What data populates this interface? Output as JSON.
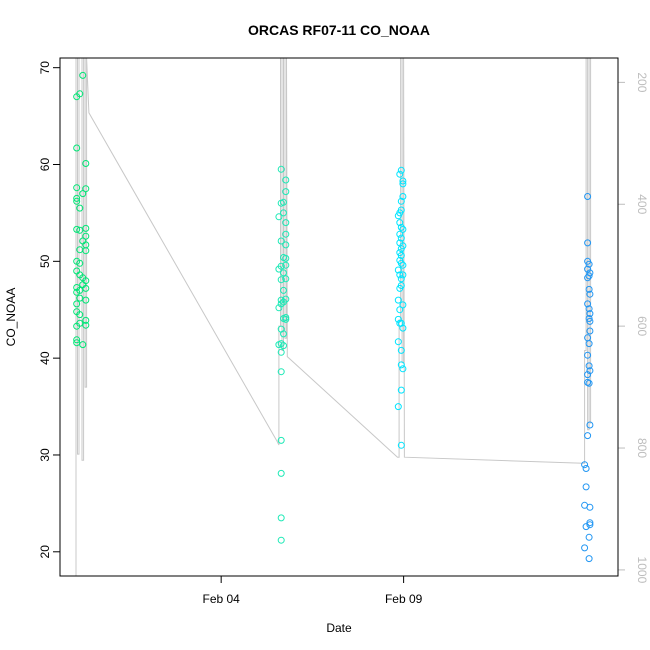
{
  "chart_data": {
    "type": "scatter",
    "title": "ORCAS RF07-11 CO_NOAA",
    "xlabel": "Date",
    "ylabel": "CO_NOAA",
    "x_axis": {
      "type": "date",
      "range": [
        "2016-01-30T14:00",
        "2016-02-14T21:00"
      ],
      "ticks": [
        {
          "value": "2016-02-04",
          "label": "Feb 04"
        },
        {
          "value": "2016-02-09",
          "label": "Feb 09"
        }
      ]
    },
    "y_axis": {
      "range": [
        17.5,
        71
      ],
      "ticks": [
        20,
        30,
        40,
        50,
        60,
        70
      ]
    },
    "y2_axis": {
      "label": "",
      "range": [
        1010,
        160
      ],
      "ticks": [
        200,
        400,
        600,
        800,
        1000
      ],
      "color": "#bdbdbd"
    },
    "grid": false,
    "series": [
      {
        "color": "#00e676",
        "points": [
          [
            "2016-01-31T01:00",
            67.0
          ],
          [
            "2016-01-31T01:00",
            61.7
          ],
          [
            "2016-01-31T01:00",
            57.6
          ],
          [
            "2016-01-31T01:00",
            56.5
          ],
          [
            "2016-01-31T01:00",
            56.2
          ],
          [
            "2016-01-31T01:00",
            53.3
          ],
          [
            "2016-01-31T01:00",
            50.0
          ],
          [
            "2016-01-31T01:00",
            49.0
          ],
          [
            "2016-01-31T01:00",
            47.3
          ],
          [
            "2016-01-31T01:00",
            46.8
          ],
          [
            "2016-01-31T01:00",
            45.6
          ],
          [
            "2016-01-31T01:00",
            44.8
          ],
          [
            "2016-01-31T01:00",
            43.3
          ],
          [
            "2016-01-31T01:00",
            41.9
          ],
          [
            "2016-01-31T01:00",
            41.6
          ],
          [
            "2016-01-31T03:00",
            67.3
          ],
          [
            "2016-01-31T03:00",
            55.5
          ],
          [
            "2016-01-31T03:00",
            53.2
          ],
          [
            "2016-01-31T03:00",
            51.2
          ],
          [
            "2016-01-31T03:00",
            49.8
          ],
          [
            "2016-01-31T03:00",
            48.6
          ],
          [
            "2016-01-31T03:00",
            47.0
          ],
          [
            "2016-01-31T03:00",
            46.2
          ],
          [
            "2016-01-31T03:00",
            44.5
          ],
          [
            "2016-01-31T03:00",
            43.6
          ],
          [
            "2016-01-31T05:00",
            69.2
          ],
          [
            "2016-01-31T05:00",
            57.0
          ],
          [
            "2016-01-31T05:00",
            52.1
          ],
          [
            "2016-01-31T05:00",
            48.3
          ],
          [
            "2016-01-31T05:00",
            47.6
          ],
          [
            "2016-01-31T05:00",
            41.4
          ],
          [
            "2016-01-31T07:00",
            60.1
          ],
          [
            "2016-01-31T07:00",
            57.5
          ],
          [
            "2016-01-31T07:00",
            53.4
          ],
          [
            "2016-01-31T07:00",
            52.6
          ],
          [
            "2016-01-31T07:00",
            51.7
          ],
          [
            "2016-01-31T07:00",
            51.1
          ],
          [
            "2016-01-31T07:00",
            48.0
          ],
          [
            "2016-01-31T07:00",
            47.2
          ],
          [
            "2016-01-31T07:00",
            46.0
          ],
          [
            "2016-01-31T07:00",
            43.9
          ],
          [
            "2016-01-31T07:00",
            43.4
          ]
        ]
      },
      {
        "color": "#1de9b6",
        "points": [
          [
            "2016-02-05T14:00",
            54.6
          ],
          [
            "2016-02-05T14:00",
            49.2
          ],
          [
            "2016-02-05T14:00",
            45.2
          ],
          [
            "2016-02-05T14:00",
            41.4
          ],
          [
            "2016-02-05T15:30",
            59.5
          ],
          [
            "2016-02-05T15:30",
            56.0
          ],
          [
            "2016-02-05T15:30",
            52.1
          ],
          [
            "2016-02-05T15:30",
            49.5
          ],
          [
            "2016-02-05T15:30",
            48.1
          ],
          [
            "2016-02-05T15:30",
            46.0
          ],
          [
            "2016-02-05T15:30",
            45.6
          ],
          [
            "2016-02-05T15:30",
            43.0
          ],
          [
            "2016-02-05T15:30",
            41.5
          ],
          [
            "2016-02-05T15:30",
            40.6
          ],
          [
            "2016-02-05T15:30",
            38.6
          ],
          [
            "2016-02-05T15:30",
            31.5
          ],
          [
            "2016-02-05T15:30",
            28.1
          ],
          [
            "2016-02-05T15:30",
            23.5
          ],
          [
            "2016-02-05T15:30",
            21.2
          ],
          [
            "2016-02-05T17:00",
            56.1
          ],
          [
            "2016-02-05T17:00",
            55.0
          ],
          [
            "2016-02-05T17:00",
            50.4
          ],
          [
            "2016-02-05T17:00",
            48.8
          ],
          [
            "2016-02-05T17:00",
            47.0
          ],
          [
            "2016-02-05T17:00",
            45.8
          ],
          [
            "2016-02-05T17:00",
            44.1
          ],
          [
            "2016-02-05T17:00",
            42.5
          ],
          [
            "2016-02-05T17:00",
            41.3
          ],
          [
            "2016-02-05T18:30",
            58.4
          ],
          [
            "2016-02-05T18:30",
            57.2
          ],
          [
            "2016-02-05T18:30",
            54.0
          ],
          [
            "2016-02-05T18:30",
            52.8
          ],
          [
            "2016-02-05T18:30",
            51.7
          ],
          [
            "2016-02-05T18:30",
            50.3
          ],
          [
            "2016-02-05T18:30",
            49.6
          ],
          [
            "2016-02-05T18:30",
            48.2
          ],
          [
            "2016-02-05T18:30",
            46.1
          ],
          [
            "2016-02-05T18:30",
            44.2
          ],
          [
            "2016-02-05T18:30",
            44.0
          ]
        ]
      },
      {
        "color": "#00e5ff",
        "points": [
          [
            "2016-02-08T20:30",
            54.7
          ],
          [
            "2016-02-08T20:30",
            49.1
          ],
          [
            "2016-02-08T20:30",
            46.0
          ],
          [
            "2016-02-08T20:30",
            44.0
          ],
          [
            "2016-02-08T20:30",
            41.7
          ],
          [
            "2016-02-08T20:30",
            35.0
          ],
          [
            "2016-02-08T21:30",
            59.0
          ],
          [
            "2016-02-08T21:30",
            55.0
          ],
          [
            "2016-02-08T21:30",
            54.0
          ],
          [
            "2016-02-08T21:30",
            52.8
          ],
          [
            "2016-02-08T21:30",
            51.9
          ],
          [
            "2016-02-08T21:30",
            50.9
          ],
          [
            "2016-02-08T21:30",
            50.1
          ],
          [
            "2016-02-08T21:30",
            48.6
          ],
          [
            "2016-02-08T21:30",
            47.2
          ],
          [
            "2016-02-08T21:30",
            45.0
          ],
          [
            "2016-02-08T21:30",
            43.6
          ],
          [
            "2016-02-08T22:30",
            59.4
          ],
          [
            "2016-02-08T22:30",
            56.2
          ],
          [
            "2016-02-08T22:30",
            55.3
          ],
          [
            "2016-02-08T22:30",
            53.5
          ],
          [
            "2016-02-08T22:30",
            52.4
          ],
          [
            "2016-02-08T22:30",
            51.3
          ],
          [
            "2016-02-08T22:30",
            50.6
          ],
          [
            "2016-02-08T22:30",
            49.8
          ],
          [
            "2016-02-08T22:30",
            48.2
          ],
          [
            "2016-02-08T22:30",
            47.5
          ],
          [
            "2016-02-08T22:30",
            43.6
          ],
          [
            "2016-02-08T22:30",
            40.8
          ],
          [
            "2016-02-08T22:30",
            39.3
          ],
          [
            "2016-02-08T22:30",
            36.7
          ],
          [
            "2016-02-08T22:30",
            31.0
          ],
          [
            "2016-02-08T23:30",
            58.3
          ],
          [
            "2016-02-08T23:30",
            58.0
          ],
          [
            "2016-02-08T23:30",
            56.7
          ],
          [
            "2016-02-08T23:30",
            53.3
          ],
          [
            "2016-02-08T23:30",
            51.6
          ],
          [
            "2016-02-08T23:30",
            49.6
          ],
          [
            "2016-02-08T23:30",
            48.6
          ],
          [
            "2016-02-08T23:30",
            45.5
          ],
          [
            "2016-02-08T23:30",
            43.1
          ],
          [
            "2016-02-08T23:30",
            38.9
          ]
        ]
      },
      {
        "color": "#2196f3",
        "points": [
          [
            "2016-02-13T23:00",
            29.0
          ],
          [
            "2016-02-13T23:00",
            24.8
          ],
          [
            "2016-02-13T23:00",
            20.4
          ],
          [
            "2016-02-14T00:00",
            28.6
          ],
          [
            "2016-02-14T00:00",
            26.7
          ],
          [
            "2016-02-14T00:00",
            22.6
          ],
          [
            "2016-02-14T01:00",
            56.7
          ],
          [
            "2016-02-14T01:00",
            51.9
          ],
          [
            "2016-02-14T01:00",
            50.0
          ],
          [
            "2016-02-14T01:00",
            49.2
          ],
          [
            "2016-02-14T01:00",
            48.3
          ],
          [
            "2016-02-14T01:00",
            45.6
          ],
          [
            "2016-02-14T01:00",
            42.1
          ],
          [
            "2016-02-14T01:00",
            40.3
          ],
          [
            "2016-02-14T01:00",
            38.3
          ],
          [
            "2016-02-14T01:00",
            37.5
          ],
          [
            "2016-02-14T01:00",
            32.0
          ],
          [
            "2016-02-14T02:00",
            49.7
          ],
          [
            "2016-02-14T02:00",
            48.5
          ],
          [
            "2016-02-14T02:00",
            47.1
          ],
          [
            "2016-02-14T02:00",
            45.1
          ],
          [
            "2016-02-14T02:00",
            44.1
          ],
          [
            "2016-02-14T02:00",
            41.5
          ],
          [
            "2016-02-14T02:00",
            39.2
          ],
          [
            "2016-02-14T02:00",
            37.4
          ],
          [
            "2016-02-14T02:00",
            21.5
          ],
          [
            "2016-02-14T02:00",
            19.3
          ],
          [
            "2016-02-14T02:30",
            48.8
          ],
          [
            "2016-02-14T02:30",
            46.6
          ],
          [
            "2016-02-14T02:30",
            44.6
          ],
          [
            "2016-02-14T02:30",
            43.8
          ],
          [
            "2016-02-14T02:30",
            42.8
          ],
          [
            "2016-02-14T02:30",
            38.7
          ],
          [
            "2016-02-14T02:30",
            33.1
          ],
          [
            "2016-02-14T02:30",
            24.6
          ],
          [
            "2016-02-14T02:30",
            23.0
          ],
          [
            "2016-02-14T02:30",
            22.8
          ]
        ]
      }
    ],
    "overlay_line": {
      "color": "#c8c8c8",
      "axis": "y2",
      "points": [
        [
          "2016-01-31T00:30",
          1010
        ],
        [
          "2016-01-31T00:30",
          160
        ],
        [
          "2016-01-31T01:30",
          160
        ],
        [
          "2016-01-31T01:30",
          810
        ],
        [
          "2016-01-31T02:30",
          810
        ],
        [
          "2016-01-31T02:30",
          160
        ],
        [
          "2016-01-31T04:30",
          160
        ],
        [
          "2016-01-31T04:30",
          820
        ],
        [
          "2016-01-31T05:30",
          820
        ],
        [
          "2016-01-31T05:30",
          160
        ],
        [
          "2016-01-31T06:30",
          160
        ],
        [
          "2016-01-31T06:30",
          700
        ],
        [
          "2016-01-31T07:30",
          700
        ],
        [
          "2016-01-31T07:30",
          160
        ],
        [
          "2016-01-31T09:00",
          250
        ],
        [
          "2016-02-05T13:00",
          790
        ],
        [
          "2016-02-05T14:00",
          795
        ],
        [
          "2016-02-05T14:00",
          600
        ],
        [
          "2016-02-05T15:00",
          600
        ],
        [
          "2016-02-05T15:00",
          160
        ],
        [
          "2016-02-05T16:00",
          160
        ],
        [
          "2016-02-05T16:00",
          640
        ],
        [
          "2016-02-05T17:00",
          640
        ],
        [
          "2016-02-05T17:00",
          160
        ],
        [
          "2016-02-05T18:00",
          160
        ],
        [
          "2016-02-05T18:00",
          620
        ],
        [
          "2016-02-05T19:00",
          620
        ],
        [
          "2016-02-05T19:00",
          160
        ],
        [
          "2016-02-05T19:30",
          650
        ],
        [
          "2016-02-08T20:00",
          815
        ],
        [
          "2016-02-08T21:00",
          815
        ],
        [
          "2016-02-08T21:00",
          590
        ],
        [
          "2016-02-08T22:00",
          590
        ],
        [
          "2016-02-08T22:00",
          160
        ],
        [
          "2016-02-08T23:00",
          160
        ],
        [
          "2016-02-08T23:00",
          660
        ],
        [
          "2016-02-09T00:00",
          660
        ],
        [
          "2016-02-09T00:00",
          160
        ],
        [
          "2016-02-09T00:30",
          815
        ],
        [
          "2016-02-13T22:00",
          825
        ],
        [
          "2016-02-13T23:00",
          825
        ],
        [
          "2016-02-13T23:00",
          640
        ],
        [
          "2016-02-14T00:00",
          640
        ],
        [
          "2016-02-14T00:00",
          160
        ],
        [
          "2016-02-14T01:00",
          160
        ],
        [
          "2016-02-14T01:00",
          770
        ],
        [
          "2016-02-14T02:00",
          770
        ],
        [
          "2016-02-14T02:00",
          160
        ],
        [
          "2016-02-14T03:00",
          160
        ],
        [
          "2016-02-14T03:00",
          760
        ]
      ]
    }
  }
}
